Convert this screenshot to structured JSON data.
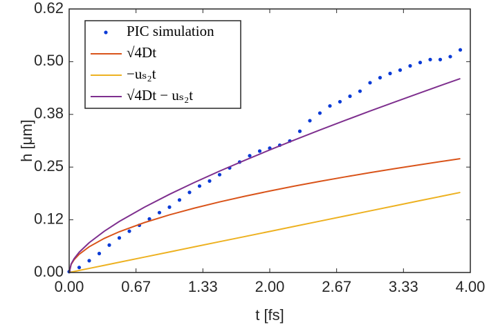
{
  "chart_data": {
    "type": "scatter",
    "xlabel": "t [fs]",
    "ylabel": "h [μm]",
    "xlim": [
      0,
      4
    ],
    "ylim": [
      0,
      0.625
    ],
    "xticks": [
      {
        "value": 0,
        "label": "0.00"
      },
      {
        "value": 0.6667,
        "label": "0.67"
      },
      {
        "value": 1.3333,
        "label": "1.33"
      },
      {
        "value": 2,
        "label": "2.00"
      },
      {
        "value": 2.6667,
        "label": "2.67"
      },
      {
        "value": 3.3333,
        "label": "3.33"
      },
      {
        "value": 4,
        "label": "4.00"
      }
    ],
    "yticks": [
      {
        "value": 0,
        "label": "0.00"
      },
      {
        "value": 0.125,
        "label": "0.12"
      },
      {
        "value": 0.25,
        "label": "0.25"
      },
      {
        "value": 0.375,
        "label": "0.38"
      },
      {
        "value": 0.5,
        "label": "0.50"
      },
      {
        "value": 0.625,
        "label": "0.62"
      }
    ],
    "legend": "upper left",
    "series": [
      {
        "name": "PIC simulation",
        "kind": "points",
        "color": "#0b3bd6",
        "x": [
          0,
          0.1,
          0.2,
          0.3,
          0.4,
          0.5,
          0.6,
          0.7,
          0.8,
          0.9,
          1.0,
          1.1,
          1.2,
          1.3,
          1.4,
          1.5,
          1.6,
          1.7,
          1.8,
          1.9,
          2.0,
          2.1,
          2.2,
          2.3,
          2.4,
          2.5,
          2.6,
          2.7,
          2.8,
          2.9,
          3.0,
          3.1,
          3.2,
          3.3,
          3.4,
          3.5,
          3.6,
          3.7,
          3.8,
          3.9
        ],
        "values": [
          0.002,
          0.012,
          0.028,
          0.045,
          0.065,
          0.082,
          0.098,
          0.112,
          0.127,
          0.142,
          0.155,
          0.172,
          0.19,
          0.205,
          0.217,
          0.232,
          0.248,
          0.262,
          0.277,
          0.288,
          0.295,
          0.302,
          0.312,
          0.335,
          0.36,
          0.378,
          0.395,
          0.405,
          0.418,
          0.43,
          0.45,
          0.462,
          0.472,
          0.48,
          0.49,
          0.498,
          0.505,
          0.505,
          0.512,
          0.528
        ]
      },
      {
        "name": "√4Dt",
        "kind": "line",
        "color": "#d95319",
        "x": [
          0,
          0.02,
          0.05,
          0.1,
          0.2,
          0.35,
          0.5,
          0.75,
          1,
          1.25,
          1.5,
          1.75,
          2,
          2.25,
          2.5,
          2.75,
          3,
          3.25,
          3.5,
          3.75,
          3.9
        ],
        "values": [
          0,
          0.0193,
          0.0306,
          0.0432,
          0.0611,
          0.0809,
          0.0967,
          0.1184,
          0.1367,
          0.1528,
          0.1674,
          0.1808,
          0.1933,
          0.2051,
          0.2161,
          0.2267,
          0.2368,
          0.2464,
          0.2557,
          0.2647,
          0.27
        ]
      },
      {
        "name": "−uₛ₂t",
        "kind": "line",
        "color": "#edb120",
        "x": [
          0,
          0.02,
          0.05,
          0.1,
          0.2,
          0.35,
          0.5,
          0.75,
          1,
          1.25,
          1.5,
          1.75,
          2,
          2.25,
          2.5,
          2.75,
          3,
          3.25,
          3.5,
          3.75,
          3.9
        ],
        "values": [
          0,
          0.001,
          0.0024,
          0.0049,
          0.0097,
          0.017,
          0.0244,
          0.0365,
          0.0487,
          0.0609,
          0.0731,
          0.0852,
          0.0974,
          0.1096,
          0.1218,
          0.1339,
          0.1461,
          0.1583,
          0.1705,
          0.1826,
          0.1899
        ]
      },
      {
        "name": "√4Dt − uₛ₂t",
        "kind": "line",
        "color": "#7e2f8e",
        "x": [
          0,
          0.02,
          0.05,
          0.1,
          0.2,
          0.35,
          0.5,
          0.75,
          1,
          1.25,
          1.5,
          1.75,
          2,
          2.25,
          2.5,
          2.75,
          3,
          3.25,
          3.5,
          3.75,
          3.9
        ],
        "values": [
          0,
          0.0203,
          0.033,
          0.0481,
          0.0708,
          0.0979,
          0.1211,
          0.1549,
          0.1854,
          0.2137,
          0.2405,
          0.266,
          0.2907,
          0.3147,
          0.3379,
          0.3606,
          0.3829,
          0.4047,
          0.4262,
          0.4473,
          0.4599
        ]
      }
    ]
  }
}
